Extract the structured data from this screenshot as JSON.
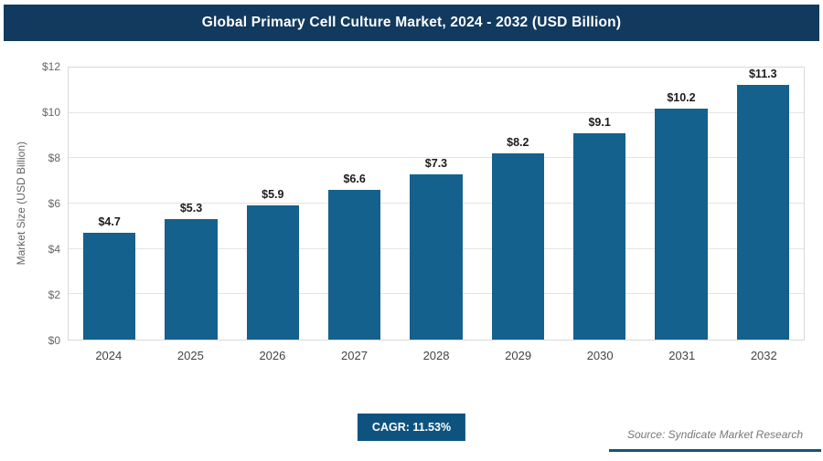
{
  "header": {
    "title": "Global Primary Cell Culture Market, 2024 - 2032 (USD Billion)"
  },
  "chart_data": {
    "type": "bar",
    "title": "Global Primary Cell Culture Market, 2024 - 2032 (USD Billion)",
    "categories": [
      "2024",
      "2025",
      "2026",
      "2027",
      "2028",
      "2029",
      "2030",
      "2031",
      "2032"
    ],
    "values": [
      4.7,
      5.3,
      5.9,
      6.6,
      7.3,
      8.2,
      9.1,
      10.2,
      11.3
    ],
    "value_labels": [
      "$4.7",
      "$5.3",
      "$5.9",
      "$6.6",
      "$7.3",
      "$8.2",
      "$9.1",
      "$10.2",
      "$11.3"
    ],
    "xlabel": "",
    "ylabel": "Market Size (USD Billion)",
    "ylim": [
      0,
      12
    ],
    "ytick_step": 2,
    "ytick_labels": [
      "$0",
      "$2",
      "$4",
      "$6",
      "$8",
      "$10",
      "$12"
    ],
    "grid": true,
    "legend": "none"
  },
  "footer": {
    "cagr_label": "CAGR: 11.53%",
    "source": "Source: Syndicate Market Research"
  },
  "colors": {
    "header_bg": "#123a5f",
    "bar_fill": "#15618d",
    "badge_bg": "#0e5380",
    "accent_line": "#1a5276",
    "gridline": "#e4e4e4"
  }
}
